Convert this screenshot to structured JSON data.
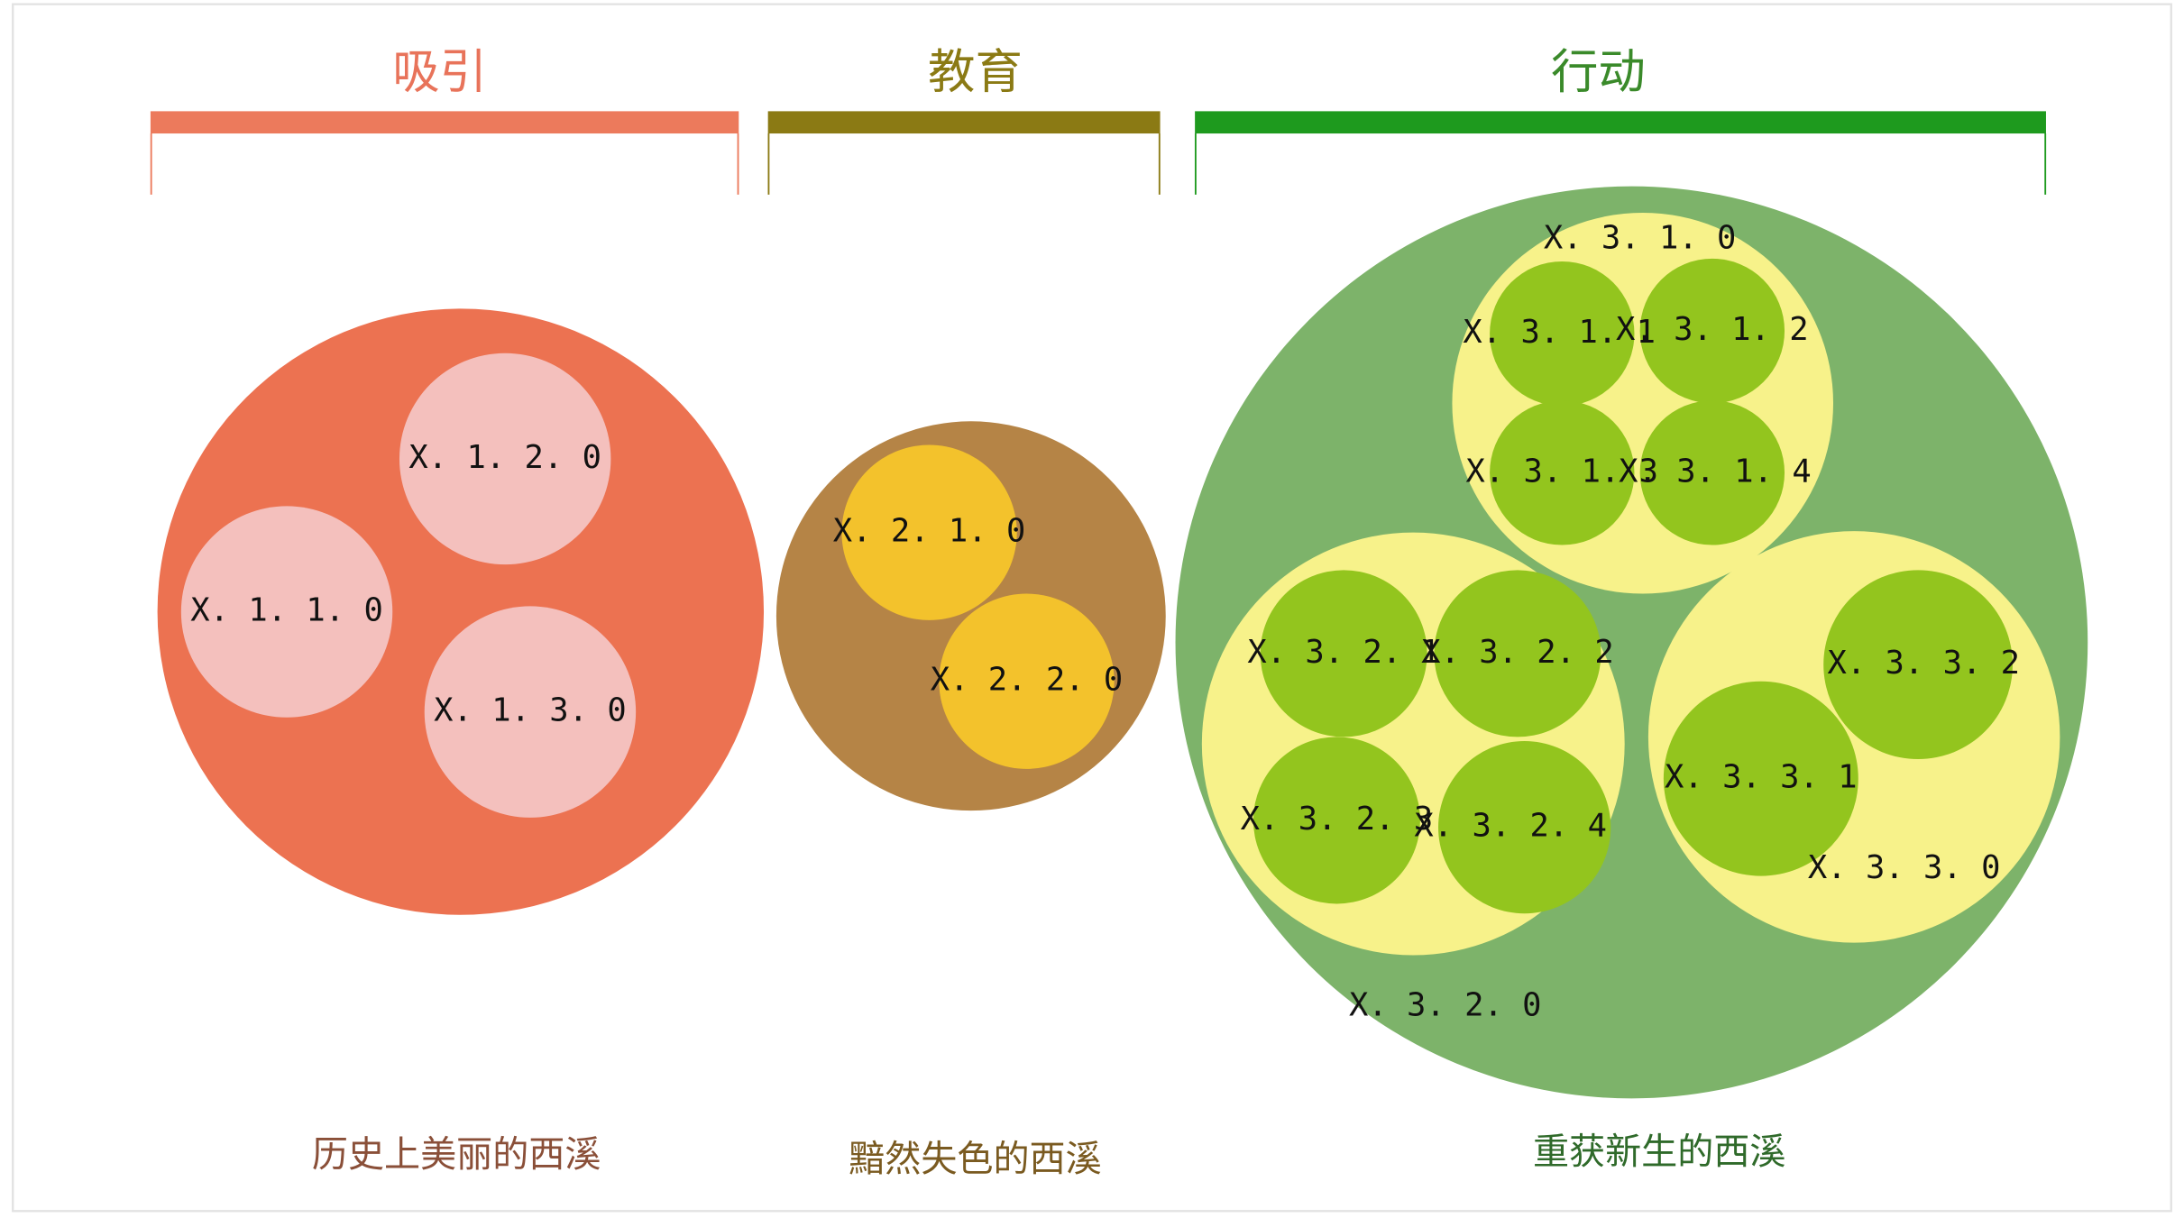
{
  "sections": [
    {
      "title": "吸引",
      "caption": "历史上美丽的西溪",
      "groups": [
        {
          "label": "X. 1. 1. 0",
          "children": []
        },
        {
          "label": "X. 1. 2. 0",
          "children": []
        },
        {
          "label": "X. 1. 3. 0",
          "children": []
        }
      ]
    },
    {
      "title": "教育",
      "caption": "黯然失色的西溪",
      "groups": [
        {
          "label": "X. 2. 1. 0",
          "children": []
        },
        {
          "label": "X. 2. 2. 0",
          "children": []
        }
      ]
    },
    {
      "title": "行动",
      "caption": "重获新生的西溪",
      "groups": [
        {
          "label": "X. 3. 1. 0",
          "children": [
            "X. 3. 1. 1",
            "X. 3. 1. 2",
            "X. 3. 1. 3",
            "X. 3. 1. 4"
          ]
        },
        {
          "label": "X. 3. 2. 0",
          "children": [
            "X. 3. 2. 1",
            "X. 3. 2. 2",
            "X. 3. 2. 3",
            "X. 3. 2. 4"
          ]
        },
        {
          "label": "X. 3. 3. 0",
          "children": [
            "X. 3. 3. 1",
            "X. 3. 3. 2"
          ]
        }
      ]
    }
  ]
}
